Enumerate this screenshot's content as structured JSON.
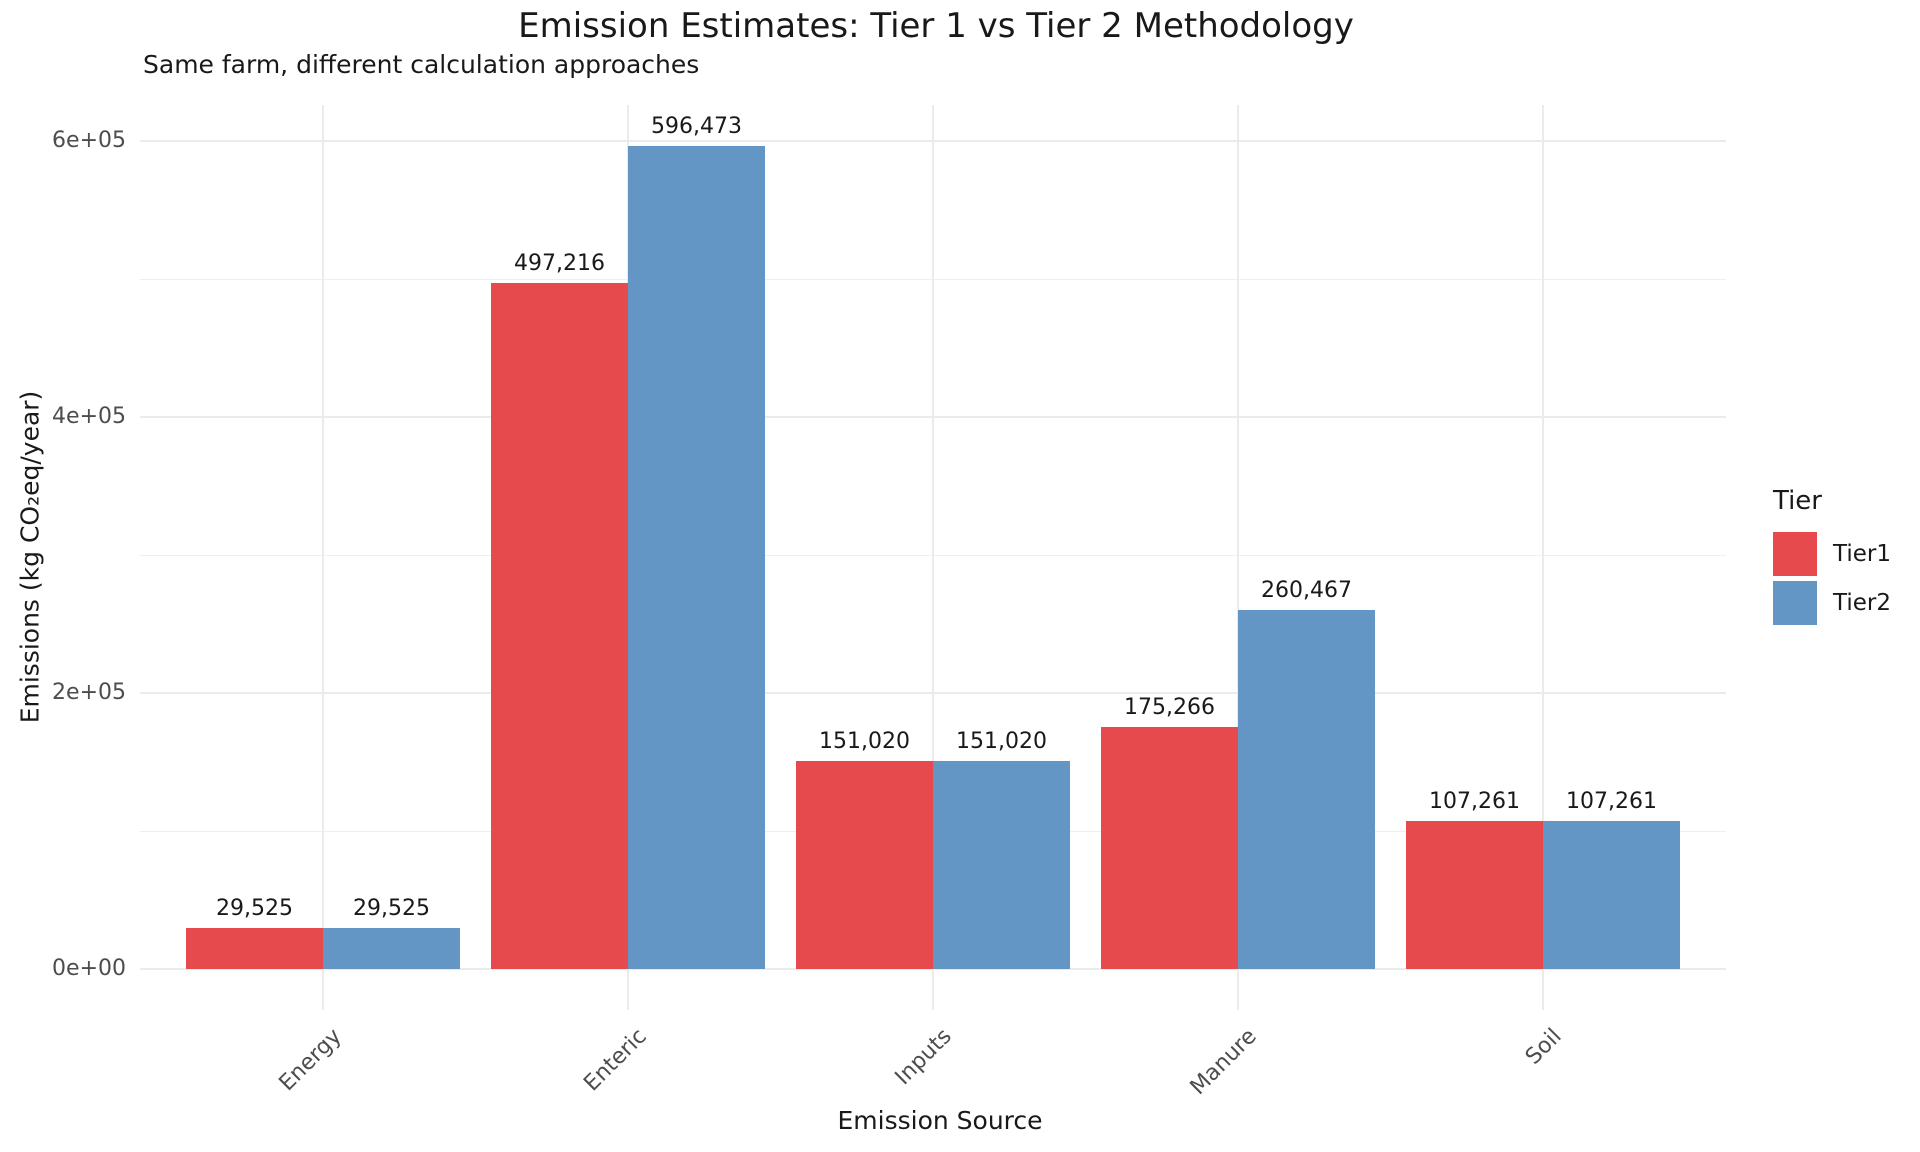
{
  "chart_data": {
    "type": "bar",
    "bar_grouping": "dodged",
    "title": "Emission Estimates: Tier 1 vs Tier 2 Methodology",
    "subtitle": "Same farm, different calculation approaches",
    "xlabel": "Emission Source",
    "ylabel": "Emissions (kg CO₂eq/year)",
    "categories": [
      "Energy",
      "Enteric",
      "Inputs",
      "Manure",
      "Soil"
    ],
    "series": [
      {
        "name": "Tier1",
        "color": "#E64A4C",
        "values": [
          29525,
          497216,
          151020,
          175266,
          107261
        ],
        "labels": [
          "29,525",
          "497,216",
          "151,020",
          "175,266",
          "107,261"
        ]
      },
      {
        "name": "Tier2",
        "color": "#6396C5",
        "values": [
          29525,
          596473,
          151020,
          260467,
          107261
        ],
        "labels": [
          "29,525",
          "596,473",
          "151,020",
          "260,467",
          "107,261"
        ]
      }
    ],
    "legend": {
      "title": "Tier",
      "position": "right"
    },
    "y_axis": {
      "range": [
        0,
        600000
      ],
      "ticks": [
        0,
        200000,
        400000,
        600000
      ],
      "tick_labels": [
        "0e+00",
        "2e+05",
        "4e+05",
        "6e+05"
      ],
      "minor_ticks": [
        100000,
        300000,
        500000
      ]
    },
    "grid": true,
    "background_color": "#FFFFFF",
    "gridline_color": "#EBEBEB",
    "axis_text_color": "#4D4D4D"
  }
}
